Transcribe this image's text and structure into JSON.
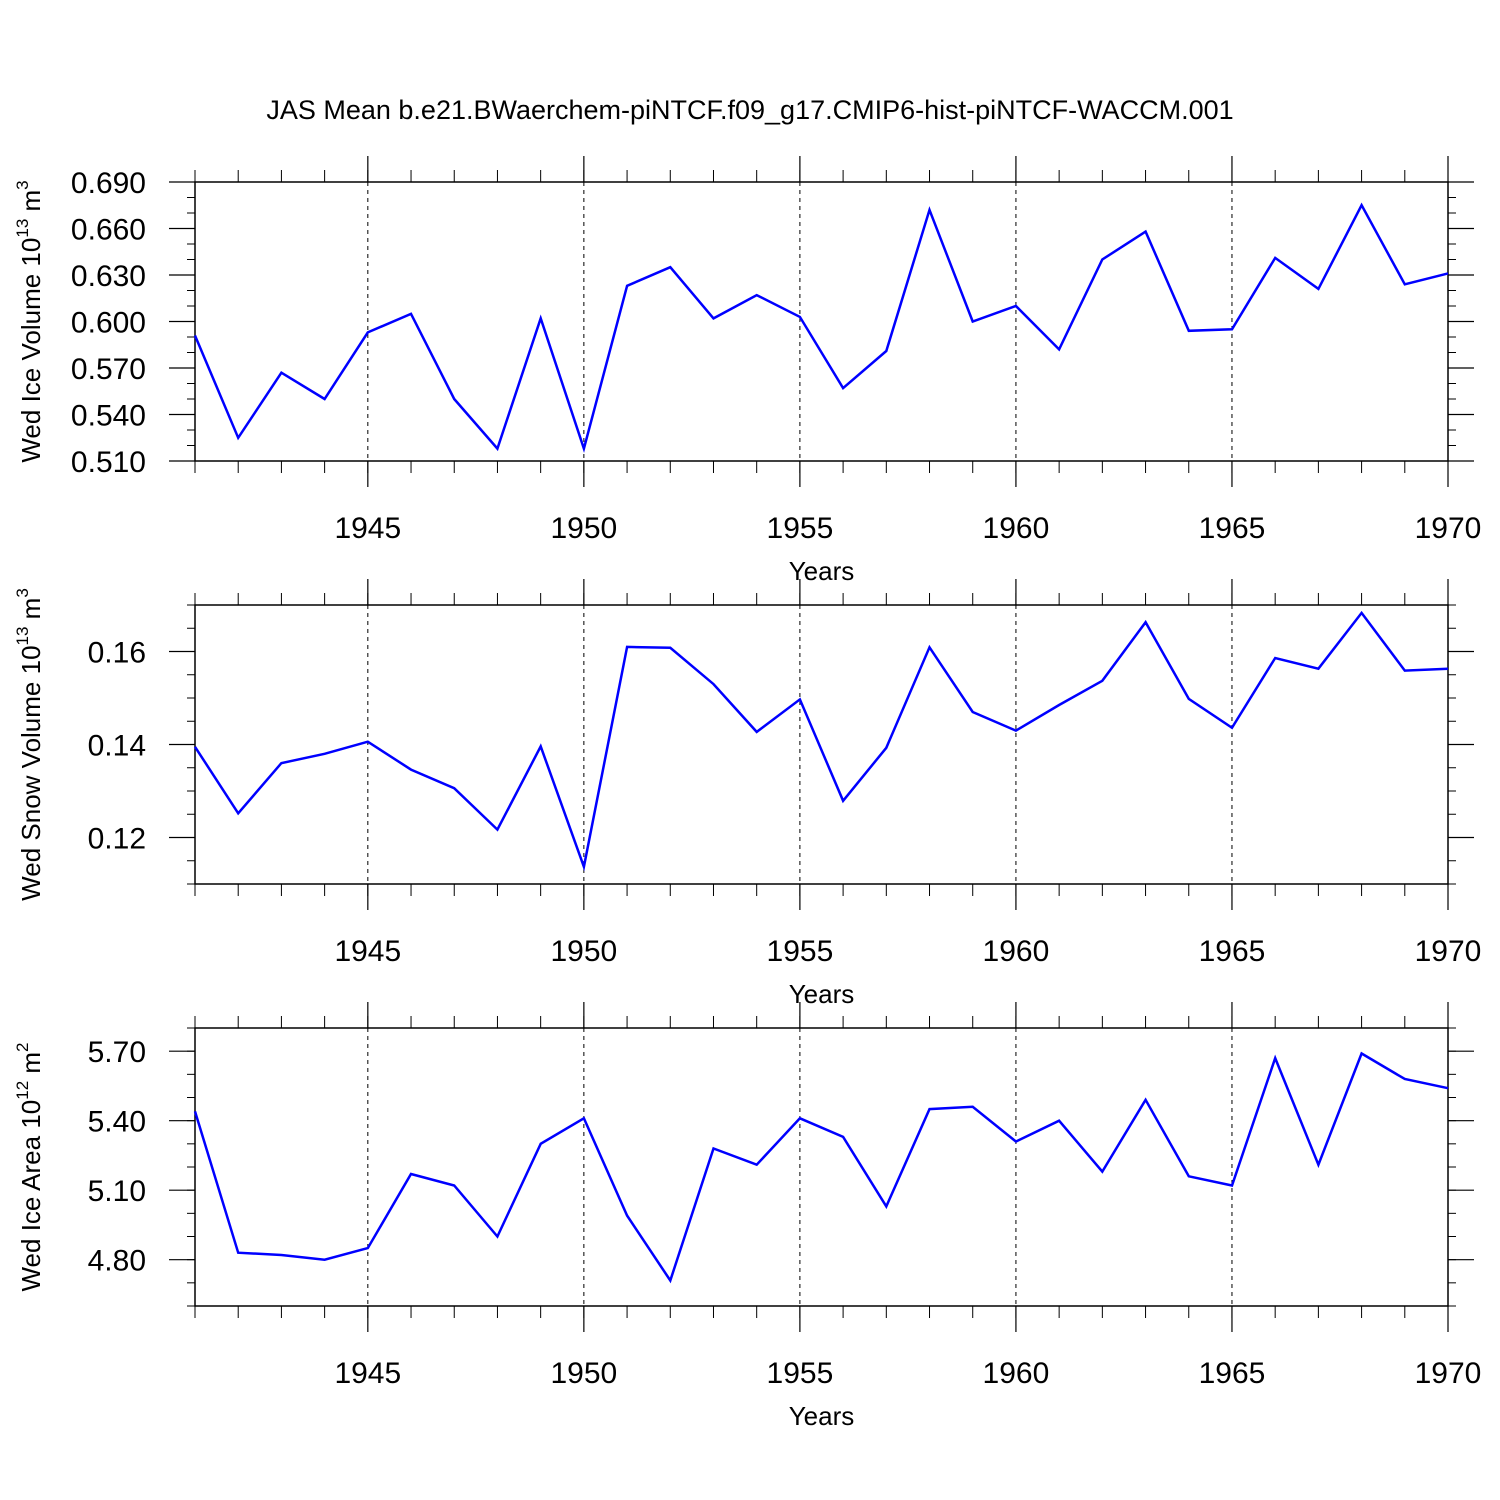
{
  "title": "JAS Mean b.e21.BWaerchem-piNTCF.f09_g17.CMIP6-hist-piNTCF-WACCM.001",
  "line_color": "#0000ff",
  "chart_data": [
    {
      "type": "line",
      "ylabel": "Wed Ice Volume 10",
      "ylabel_exp": "13",
      "ylabel_unit": " m",
      "ylabel_unit_exp": "3",
      "xlabel": "Years",
      "xlim": [
        1941,
        1970
      ],
      "ylim": [
        0.51,
        0.69
      ],
      "yticks": [
        0.51,
        0.54,
        0.57,
        0.6,
        0.63,
        0.66,
        0.69
      ],
      "ytick_labels": [
        "0.510",
        "0.540",
        "0.570",
        "0.600",
        "0.630",
        "0.660",
        "0.690"
      ],
      "yminor_step": 0.01,
      "xticks": [
        1945,
        1950,
        1955,
        1960,
        1965,
        1970
      ],
      "xtick_labels": [
        "1945",
        "1950",
        "1955",
        "1960",
        "1965",
        "1970"
      ],
      "x": [
        1941,
        1942,
        1943,
        1944,
        1945,
        1946,
        1947,
        1948,
        1949,
        1950,
        1951,
        1952,
        1953,
        1954,
        1955,
        1956,
        1957,
        1958,
        1959,
        1960,
        1961,
        1962,
        1963,
        1964,
        1965,
        1966,
        1967,
        1968,
        1969,
        1970
      ],
      "values": [
        0.591,
        0.525,
        0.567,
        0.55,
        0.593,
        0.605,
        0.55,
        0.518,
        0.602,
        0.518,
        0.623,
        0.635,
        0.602,
        0.617,
        0.603,
        0.557,
        0.581,
        0.672,
        0.6,
        0.61,
        0.582,
        0.64,
        0.658,
        0.594,
        0.595,
        0.641,
        0.621,
        0.675,
        0.624,
        0.631
      ]
    },
    {
      "type": "line",
      "ylabel": "Wed Snow Volume 10",
      "ylabel_exp": "13",
      "ylabel_unit": " m",
      "ylabel_unit_exp": "3",
      "xlabel": "Years",
      "xlim": [
        1941,
        1970
      ],
      "ylim": [
        0.11,
        0.17
      ],
      "yticks": [
        0.12,
        0.14,
        0.16
      ],
      "ytick_labels": [
        "0.12",
        "0.14",
        "0.16"
      ],
      "yminor_step": 0.005,
      "xticks": [
        1945,
        1950,
        1955,
        1960,
        1965,
        1970
      ],
      "xtick_labels": [
        "1945",
        "1950",
        "1955",
        "1960",
        "1965",
        "1970"
      ],
      "x": [
        1941,
        1942,
        1943,
        1944,
        1945,
        1946,
        1947,
        1948,
        1949,
        1950,
        1951,
        1952,
        1953,
        1954,
        1955,
        1956,
        1957,
        1958,
        1959,
        1960,
        1961,
        1962,
        1963,
        1964,
        1965,
        1966,
        1967,
        1968,
        1969,
        1970
      ],
      "values": [
        0.1395,
        0.1252,
        0.136,
        0.138,
        0.1406,
        0.1346,
        0.1306,
        0.1217,
        0.1396,
        0.1137,
        0.161,
        0.1608,
        0.153,
        0.1427,
        0.1497,
        0.1279,
        0.1393,
        0.1609,
        0.147,
        0.143,
        0.1485,
        0.1537,
        0.1663,
        0.1498,
        0.1436,
        0.1586,
        0.1563,
        0.1683,
        0.1559,
        0.1563
      ]
    },
    {
      "type": "line",
      "ylabel": "Wed Ice Area 10",
      "ylabel_exp": "12",
      "ylabel_unit": " m",
      "ylabel_unit_exp": "2",
      "xlabel": "Years",
      "xlim": [
        1941,
        1970
      ],
      "ylim": [
        4.6,
        5.8
      ],
      "yticks": [
        4.8,
        5.1,
        5.4,
        5.7
      ],
      "ytick_labels": [
        "4.80",
        "5.10",
        "5.40",
        "5.70"
      ],
      "yminor_step": 0.1,
      "xticks": [
        1945,
        1950,
        1955,
        1960,
        1965,
        1970
      ],
      "xtick_labels": [
        "1945",
        "1950",
        "1955",
        "1960",
        "1965",
        "1970"
      ],
      "x": [
        1941,
        1942,
        1943,
        1944,
        1945,
        1946,
        1947,
        1948,
        1949,
        1950,
        1951,
        1952,
        1953,
        1954,
        1955,
        1956,
        1957,
        1958,
        1959,
        1960,
        1961,
        1962,
        1963,
        1964,
        1965,
        1966,
        1967,
        1968,
        1969,
        1970
      ],
      "values": [
        5.44,
        4.83,
        4.82,
        4.8,
        4.85,
        5.17,
        5.12,
        4.9,
        5.3,
        5.41,
        4.99,
        4.71,
        5.28,
        5.21,
        5.41,
        5.33,
        5.03,
        5.45,
        5.46,
        5.31,
        5.4,
        5.18,
        5.49,
        5.16,
        5.12,
        5.67,
        5.21,
        5.69,
        5.58,
        5.54
      ]
    }
  ]
}
